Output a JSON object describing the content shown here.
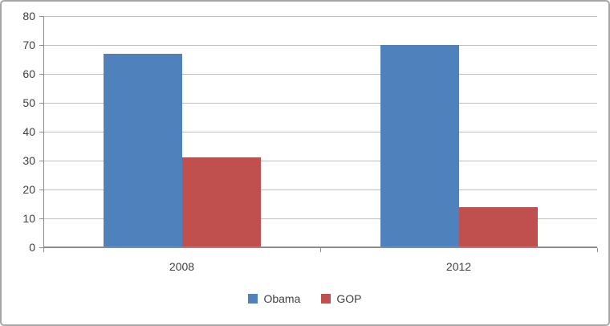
{
  "chart_data": {
    "type": "bar",
    "title": "",
    "xlabel": "",
    "ylabel": "",
    "categories": [
      "2008",
      "2012"
    ],
    "series": [
      {
        "name": "Obama",
        "color": "#4F81BD",
        "values": [
          67,
          70
        ]
      },
      {
        "name": "GOP",
        "color": "#C0504D",
        "values": [
          31,
          14
        ]
      }
    ],
    "ylim": [
      0,
      80
    ],
    "ytick_step": 10,
    "ytick_labels": [
      "0",
      "10",
      "20",
      "30",
      "40",
      "50",
      "60",
      "70",
      "80"
    ],
    "grid": true,
    "legend_position": "bottom"
  },
  "legend": {
    "entries": [
      "Obama",
      "GOP"
    ]
  }
}
